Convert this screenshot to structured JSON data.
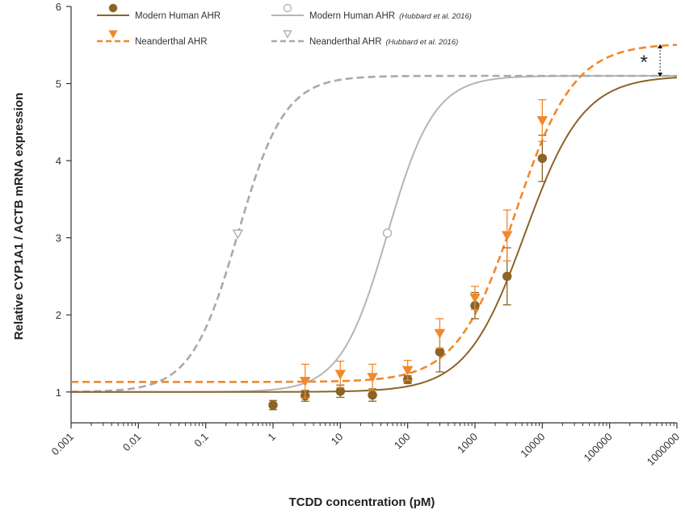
{
  "chart_data": {
    "type": "line",
    "xlabel": "TCDD concentration (pM)",
    "ylabel": "Relative CYP1A1 / ACTB mRNA expression",
    "xscale": "log",
    "xlim": [
      0.001,
      1000000
    ],
    "ylim": [
      0.6,
      6
    ],
    "x_tick_labels": [
      "0.001",
      "0.01",
      "0.1",
      "1",
      "10",
      "100",
      "1000",
      "10000",
      "100000",
      "1000000"
    ],
    "y_tick_labels": [
      "1",
      "2",
      "3",
      "4",
      "5",
      "6"
    ],
    "annotation": "*",
    "legend_position": "top",
    "colors": {
      "modern": "#8b6428",
      "neanderthal": "#f0892c",
      "hubbard": "#b5b5b5",
      "hubbard_dashed": "#a9a9a9"
    },
    "legend": [
      {
        "label": "Modern Human AHR",
        "citation": ""
      },
      {
        "label": "Neanderthal AHR",
        "citation": ""
      },
      {
        "label": "Modern Human AHR",
        "citation": "(Hubbard et al. 2016)"
      },
      {
        "label": "Neanderthal AHR",
        "citation": "(Hubbard et al. 2016)"
      }
    ],
    "series": [
      {
        "name": "Modern Human AHR",
        "points": [
          {
            "x": 1,
            "y": 0.83,
            "err": 0.06
          },
          {
            "x": 3,
            "y": 0.95,
            "err": 0.07
          },
          {
            "x": 10,
            "y": 1.01,
            "err": 0.08
          },
          {
            "x": 30,
            "y": 0.96,
            "err": 0.08
          },
          {
            "x": 100,
            "y": 1.16,
            "err": 0.05
          },
          {
            "x": 300,
            "y": 1.52,
            "err": 0.26
          },
          {
            "x": 1000,
            "y": 2.12,
            "err": 0.17
          },
          {
            "x": 3000,
            "y": 2.5,
            "err": 0.37
          },
          {
            "x": 10000,
            "y": 4.03,
            "err": 0.3
          }
        ],
        "fit": {
          "bottom": 1.0,
          "top": 5.1,
          "ec50": 5500,
          "hill": 1.0
        }
      },
      {
        "name": "Neanderthal AHR",
        "points": [
          {
            "x": 3,
            "y": 1.14,
            "err": 0.22
          },
          {
            "x": 10,
            "y": 1.23,
            "err": 0.17
          },
          {
            "x": 30,
            "y": 1.19,
            "err": 0.17
          },
          {
            "x": 100,
            "y": 1.28,
            "err": 0.13
          },
          {
            "x": 300,
            "y": 1.76,
            "err": 0.19
          },
          {
            "x": 1000,
            "y": 2.22,
            "err": 0.15
          },
          {
            "x": 3000,
            "y": 3.03,
            "err": 0.33
          },
          {
            "x": 10000,
            "y": 4.52,
            "err": 0.27
          }
        ],
        "fit": {
          "bottom": 1.13,
          "top": 5.52,
          "ec50": 4000,
          "hill": 1.0
        }
      },
      {
        "name": "Modern Human AHR",
        "citation": "(Hubbard et al. 2016)",
        "points": [
          {
            "x": 50,
            "y": 3.06
          }
        ],
        "fit": {
          "bottom": 1.0,
          "top": 5.1,
          "ec50": 50,
          "hill": 1.25
        }
      },
      {
        "name": "Neanderthal AHR",
        "citation": "(Hubbard et al. 2016)",
        "points": [
          {
            "x": 0.3,
            "y": 3.05
          }
        ],
        "fit": {
          "bottom": 1.0,
          "top": 5.1,
          "ec50": 0.3,
          "hill": 1.25
        }
      }
    ]
  }
}
